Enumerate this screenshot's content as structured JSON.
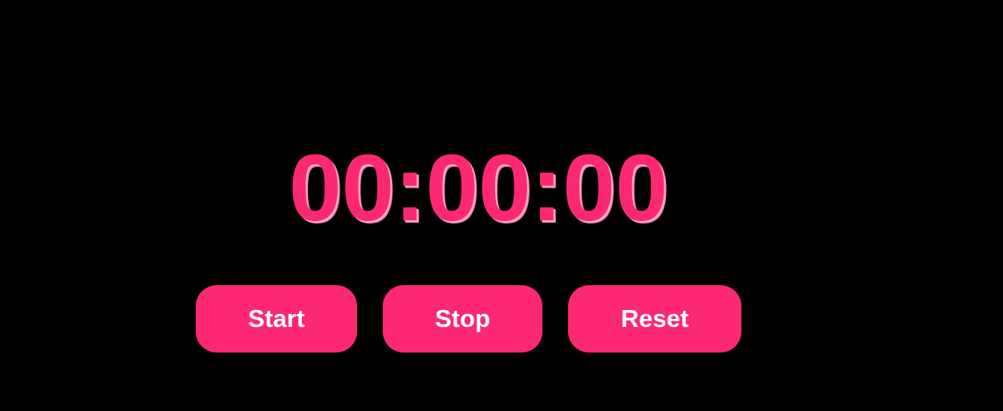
{
  "timer": {
    "display": "00:00:00"
  },
  "controls": {
    "start_label": "Start",
    "stop_label": "Stop",
    "reset_label": "Reset"
  },
  "colors": {
    "background": "#000000",
    "accent": "#fc2873",
    "button_text": "#ffffff",
    "digit_shadow": "#f7a8c4"
  }
}
